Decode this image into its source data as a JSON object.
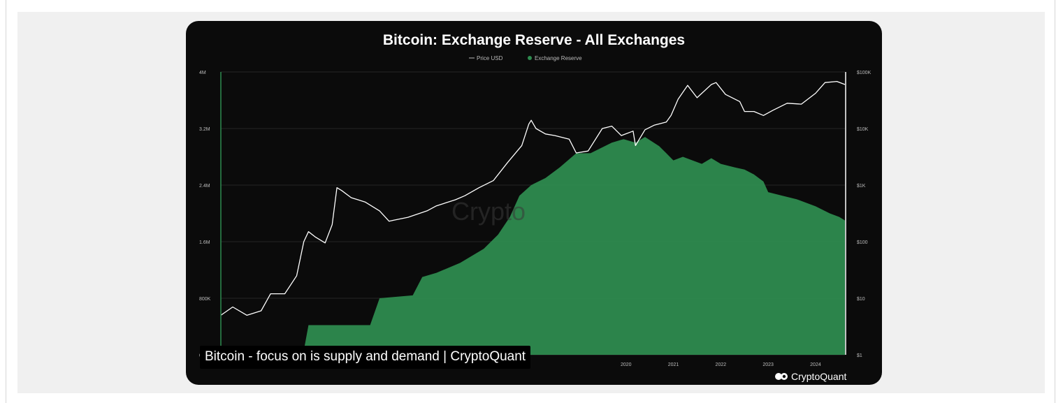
{
  "chart_data": {
    "type": "area",
    "title": "Bitcoin: Exchange Reserve - All Exchanges",
    "legend": {
      "placement": "top-center",
      "items": [
        {
          "label": "Price USD",
          "color": "#ffffff",
          "kind": "line"
        },
        {
          "label": "Exchange Reserve",
          "color": "#2e8b4f",
          "kind": "dot"
        }
      ]
    },
    "y_left": {
      "ticks": [
        "4M",
        "3.2M",
        "2.4M",
        "1.6M",
        "800K",
        "0"
      ],
      "tick_values": [
        4000000,
        3200000,
        2400000,
        1600000,
        800000,
        0
      ],
      "ylim": [
        0,
        4000000
      ]
    },
    "y_right": {
      "scale": "log",
      "ticks": [
        "$100K",
        "$10K",
        "$1K",
        "$100",
        "$10",
        "$1"
      ],
      "tick_values": [
        100000,
        10000,
        1000,
        100,
        10,
        1
      ],
      "ylim": [
        1,
        100000
      ]
    },
    "x_ticks": [
      {
        "label": "2020",
        "value": 2020
      },
      {
        "label": "2021",
        "value": 2021
      },
      {
        "label": "2022",
        "value": 2022
      },
      {
        "label": "2023",
        "value": 2023
      },
      {
        "label": "2024",
        "value": 2024
      }
    ],
    "xlim": [
      2011.45,
      2024.62
    ],
    "grid": "horizontal",
    "series": [
      {
        "name": "Exchange Reserve",
        "color": "#2e8b4f",
        "x": [
          2011.45,
          2012.4,
          2012.5,
          2013.2,
          2013.3,
          2014.6,
          2014.8,
          2015.5,
          2015.7,
          2016.0,
          2016.5,
          2017.0,
          2017.3,
          2017.55,
          2017.75,
          2018.0,
          2018.3,
          2018.6,
          2018.95,
          2019.25,
          2019.7,
          2019.95,
          2020.2,
          2020.4,
          2020.7,
          2020.85,
          2021.0,
          2021.2,
          2021.6,
          2021.8,
          2022.0,
          2022.3,
          2022.5,
          2022.7,
          2022.9,
          2023.0,
          2023.3,
          2023.6,
          2024.0,
          2024.3,
          2024.5,
          2024.62
        ],
        "values": [
          0,
          0,
          20000,
          60000,
          420000,
          420000,
          800000,
          840000,
          1100000,
          1160000,
          1300000,
          1500000,
          1700000,
          1950000,
          2250000,
          2400000,
          2500000,
          2650000,
          2850000,
          2850000,
          3000000,
          3050000,
          3000000,
          3080000,
          2950000,
          2850000,
          2750000,
          2800000,
          2700000,
          2780000,
          2700000,
          2650000,
          2620000,
          2550000,
          2450000,
          2300000,
          2250000,
          2200000,
          2100000,
          2000000,
          1950000,
          1900000
        ]
      },
      {
        "name": "Price USD",
        "color": "#ffffff",
        "x": [
          2011.45,
          2011.7,
          2012.0,
          2012.3,
          2012.5,
          2012.8,
          2013.05,
          2013.2,
          2013.3,
          2013.45,
          2013.65,
          2013.8,
          2013.9,
          2014.0,
          2014.2,
          2014.5,
          2014.8,
          2015.0,
          2015.1,
          2015.4,
          2015.8,
          2016.0,
          2016.4,
          2016.6,
          2016.9,
          2017.2,
          2017.5,
          2017.8,
          2017.95,
          2018.0,
          2018.1,
          2018.3,
          2018.5,
          2018.8,
          2018.95,
          2019.2,
          2019.5,
          2019.7,
          2019.9,
          2020.15,
          2020.2,
          2020.4,
          2020.6,
          2020.85,
          2020.95,
          2021.1,
          2021.3,
          2021.5,
          2021.8,
          2021.9,
          2022.1,
          2022.4,
          2022.5,
          2022.7,
          2022.9,
          2023.1,
          2023.4,
          2023.7,
          2024.0,
          2024.2,
          2024.45,
          2024.62
        ],
        "values": [
          5,
          7,
          5,
          6,
          12,
          12,
          25,
          100,
          150,
          120,
          95,
          200,
          900,
          800,
          600,
          500,
          350,
          230,
          240,
          270,
          350,
          430,
          550,
          650,
          900,
          1200,
          2500,
          5000,
          12000,
          14000,
          10000,
          8000,
          7500,
          6500,
          3700,
          4000,
          10000,
          11000,
          7500,
          9000,
          5000,
          9500,
          11500,
          13000,
          17000,
          33000,
          58000,
          35000,
          60000,
          65000,
          40000,
          30000,
          20000,
          20000,
          17000,
          21000,
          28000,
          27000,
          42000,
          65000,
          68000,
          60000
        ]
      }
    ],
    "watermark": "Crypto"
  },
  "overlay": {
    "caption": "Bitcoin - focus on is supply and demand | CryptoQuant",
    "brand": "CryptoQuant"
  }
}
